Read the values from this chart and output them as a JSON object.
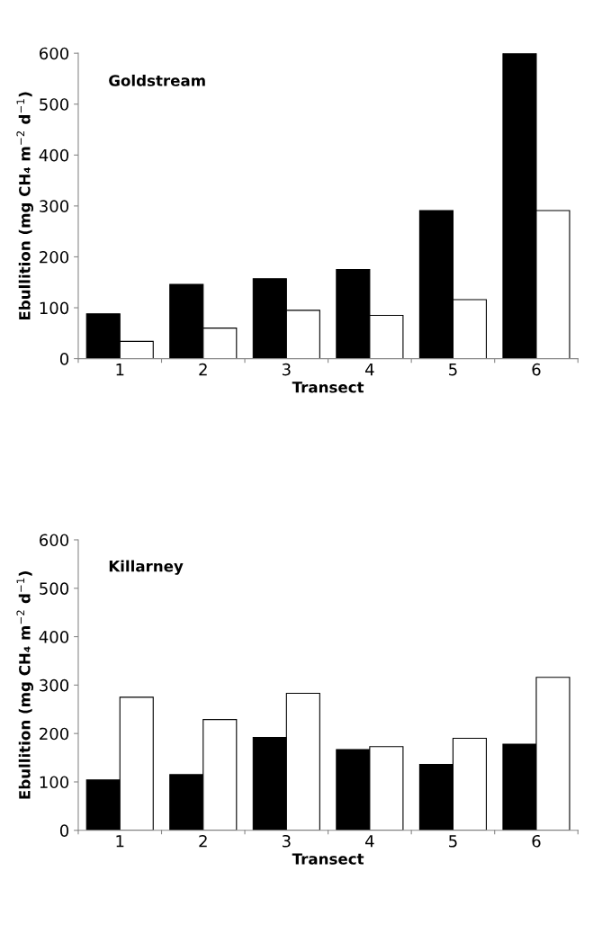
{
  "chart_data": [
    {
      "type": "bar",
      "title": "Goldstream",
      "xlabel": "Transect",
      "ylabel": "Ebullition (mg CH₄ m$^{−2}$ d$^{−1}$)",
      "categories": [
        "1",
        "2",
        "3",
        "4",
        "5",
        "6"
      ],
      "series": [
        {
          "color": "#000000",
          "values": [
            88,
            146,
            157,
            175,
            291,
            600
          ]
        },
        {
          "color": "#ffffff",
          "values": [
            34,
            60,
            95,
            85,
            116,
            291
          ]
        }
      ],
      "ylim": [
        0,
        600
      ],
      "yticks": [
        0,
        100,
        200,
        300,
        400,
        500,
        600
      ],
      "grid": false,
      "legend": false
    },
    {
      "type": "bar",
      "title": "Killarney",
      "xlabel": "Transect",
      "ylabel": "Ebullition (mg CH₄ m$^{−2}$ d$^{−1}$)",
      "categories": [
        "1",
        "2",
        "3",
        "4",
        "5",
        "6"
      ],
      "series": [
        {
          "color": "#000000",
          "values": [
            104,
            115,
            192,
            167,
            136,
            178
          ]
        },
        {
          "color": "#ffffff",
          "values": [
            275,
            229,
            283,
            173,
            190,
            316
          ]
        }
      ],
      "ylim": [
        0,
        600
      ],
      "yticks": [
        0,
        100,
        200,
        300,
        400,
        500,
        600
      ],
      "grid": false,
      "legend": false
    }
  ]
}
